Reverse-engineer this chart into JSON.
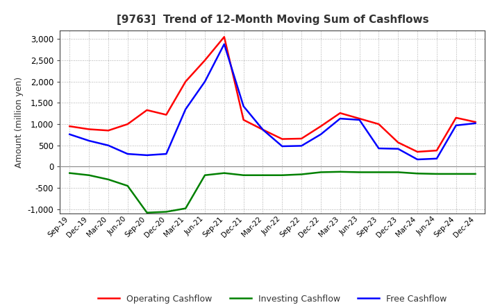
{
  "title": "[9763]  Trend of 12-Month Moving Sum of Cashflows",
  "ylabel": "Amount (million yen)",
  "x_labels": [
    "Sep-19",
    "Dec-19",
    "Mar-20",
    "Jun-20",
    "Sep-20",
    "Dec-20",
    "Mar-21",
    "Jun-21",
    "Sep-21",
    "Dec-21",
    "Mar-22",
    "Jun-22",
    "Sep-22",
    "Dec-22",
    "Mar-23",
    "Jun-23",
    "Sep-23",
    "Dec-23",
    "Mar-24",
    "Jun-24",
    "Sep-24",
    "Dec-24"
  ],
  "operating": [
    950,
    880,
    850,
    1000,
    1330,
    1220,
    2000,
    2500,
    3050,
    1100,
    870,
    650,
    660,
    950,
    1260,
    1130,
    1000,
    570,
    350,
    380,
    1150,
    1050
  ],
  "investing": [
    -150,
    -200,
    -300,
    -450,
    -1080,
    -1060,
    -980,
    -200,
    -150,
    -200,
    -200,
    -200,
    -180,
    -130,
    -120,
    -130,
    -130,
    -130,
    -160,
    -170,
    -170,
    -170
  ],
  "free": [
    760,
    610,
    500,
    300,
    270,
    300,
    1350,
    2000,
    2880,
    1420,
    870,
    480,
    490,
    760,
    1130,
    1100,
    430,
    420,
    170,
    190,
    970,
    1020
  ],
  "operating_color": "#FF0000",
  "investing_color": "#008000",
  "free_color": "#0000FF",
  "ylim": [
    -1100,
    3200
  ],
  "yticks": [
    -1000,
    -500,
    0,
    500,
    1000,
    1500,
    2000,
    2500,
    3000
  ],
  "grid_color": "#aaaaaa",
  "background_color": "#ffffff",
  "legend_labels": [
    "Operating Cashflow",
    "Investing Cashflow",
    "Free Cashflow"
  ],
  "title_color": "#333333",
  "linewidth": 1.8
}
